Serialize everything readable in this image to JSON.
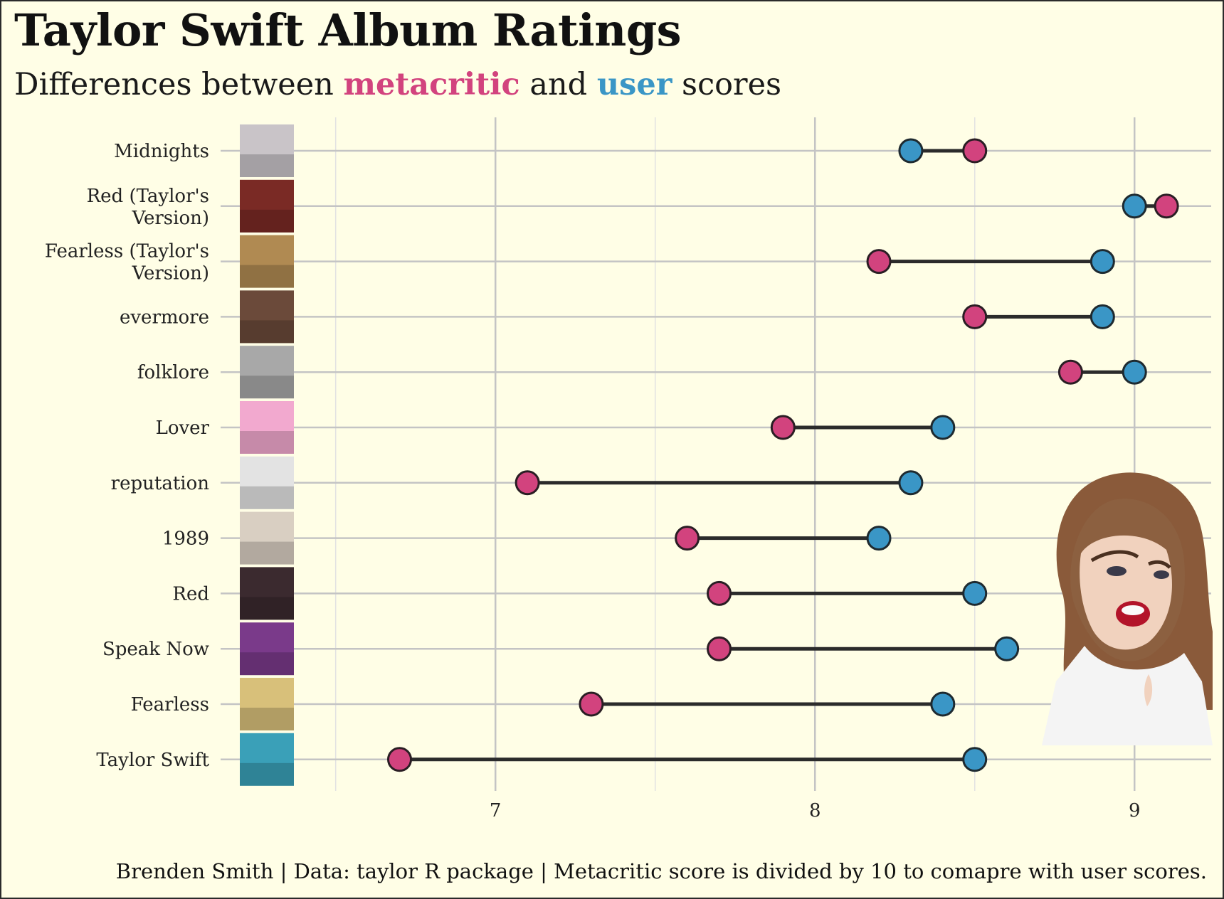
{
  "header": {
    "title": "Taylor Swift Album Ratings",
    "subtitle_prefix": "Differences between ",
    "subtitle_metacritic": "metacritic",
    "subtitle_middle": " and ",
    "subtitle_user": "user",
    "subtitle_suffix": " scores"
  },
  "caption": "Brenden Smith | Data: taylor R package | Metacritic score is divided by 10 to comapre with user scores.",
  "colors": {
    "background": "#fffee6",
    "metacritic": "#d2437e",
    "user": "#3a96c6",
    "segment": "#2b2b2b",
    "grid": "#c4c4c4"
  },
  "chart_data": {
    "type": "dumbbell",
    "title": "Taylor Swift Album Ratings",
    "subtitle": "Differences between metacritic and user scores",
    "xlabel": "",
    "ylabel": "",
    "xlim": [
      6.2,
      9.24
    ],
    "x_ticks": [
      7,
      8,
      9
    ],
    "grid": true,
    "legend": "none (colored words in subtitle)",
    "categories": [
      "Midnights",
      "Red (Taylor's\nVersion)",
      "Fearless (Taylor's\nVersion)",
      "evermore",
      "folklore",
      "Lover",
      "reputation",
      "1989",
      "Red",
      "Speak Now",
      "Fearless",
      "Taylor Swift"
    ],
    "series": [
      {
        "name": "metacritic",
        "values": [
          8.5,
          9.1,
          8.2,
          8.5,
          8.8,
          7.9,
          7.1,
          7.6,
          7.7,
          7.7,
          7.3,
          6.7
        ]
      },
      {
        "name": "user",
        "values": [
          8.3,
          9.0,
          8.9,
          8.9,
          9.0,
          8.4,
          8.3,
          8.2,
          8.5,
          8.6,
          8.4,
          8.5
        ]
      }
    ],
    "album_cover_icons": [
      "midnights-cover-icon",
      "red-tv-cover-icon",
      "fearless-tv-cover-icon",
      "evermore-cover-icon",
      "folklore-cover-icon",
      "lover-cover-icon",
      "reputation-cover-icon",
      "1989-cover-icon",
      "red-cover-icon",
      "speak-now-cover-icon",
      "fearless-cover-icon",
      "taylor-swift-cover-icon"
    ],
    "cover_colors": [
      "#c9c4c8",
      "#7a2a25",
      "#b08a52",
      "#6b4a3a",
      "#a8a8a8",
      "#f2a9cf",
      "#e3e3e3",
      "#d9cfc2",
      "#3b2a2f",
      "#7a3a8a",
      "#d8c07a",
      "#3aa0b8"
    ]
  }
}
